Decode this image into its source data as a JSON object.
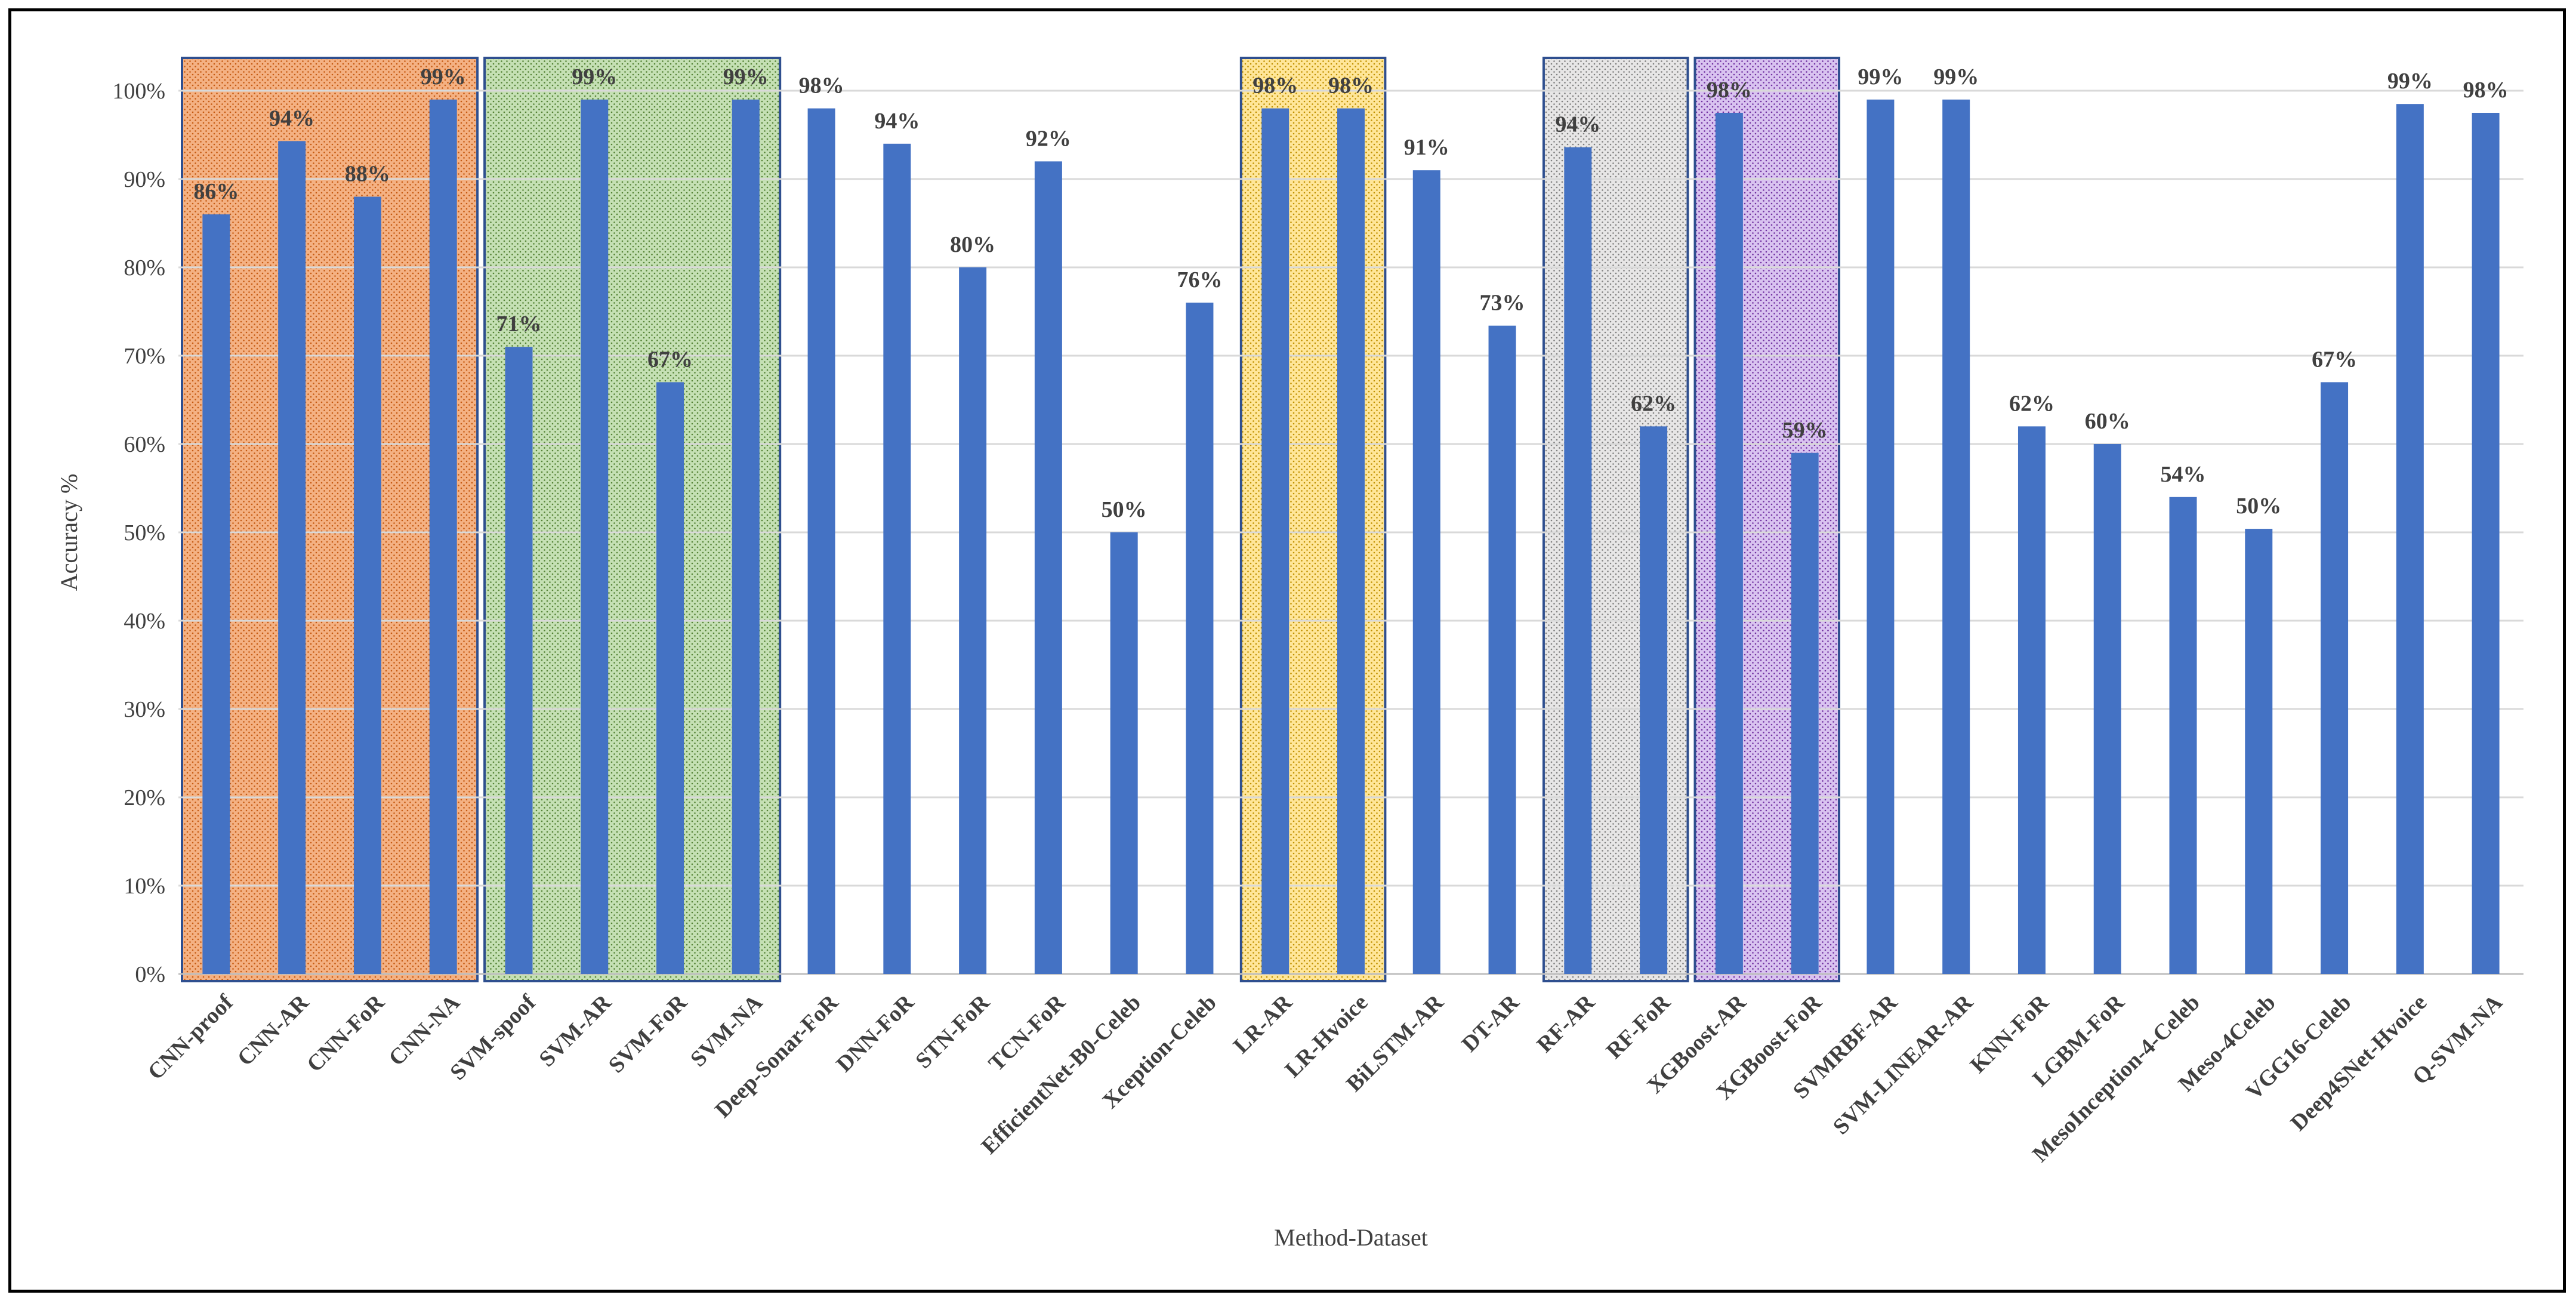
{
  "chart_data": {
    "type": "bar",
    "title": "",
    "xlabel": "Method-Dataset",
    "ylabel": "Accuracy %",
    "ylim": [
      0,
      100
    ],
    "yticks": [
      "0%",
      "10%",
      "20%",
      "30%",
      "40%",
      "50%",
      "60%",
      "70%",
      "80%",
      "90%",
      "100%"
    ],
    "grid": true,
    "bar_color": "#4472c4",
    "categories": [
      "CNN-proof",
      "CNN-AR",
      "CNN-FoR",
      "CNN-NA",
      "SVM-spoof",
      "SVM-AR",
      "SVM-FoR",
      "SVM-NA",
      "Deep-Sonar-FoR",
      "DNN-FoR",
      "STN-FoR",
      "TCN-FoR",
      "EfficientNet-B0-Celeb",
      "Xception-Celeb",
      "LR-AR",
      "LR-Hvoice",
      "BiLSTM-AR",
      "DT-AR",
      "RF-AR",
      "RF-FoR",
      "XGBoost-AR",
      "XGBoost-FoR",
      "SVMRBF-AR",
      "SVM-LINEAR-AR",
      "KNN-FoR",
      "LGBM-FoR",
      "MesoInception-4-Celeb",
      "Meso-4Celeb",
      "VGG16-Celeb",
      "Deep4SNet-Hvoice",
      "Q-SVM-NA"
    ],
    "values": [
      86,
      94.3,
      88,
      99,
      71,
      99,
      67,
      99,
      98,
      94,
      80,
      92,
      50,
      76,
      98,
      98,
      91,
      73.4,
      93.6,
      62,
      97.5,
      59,
      99,
      99,
      62,
      60,
      54,
      50.4,
      67,
      98.5,
      97.5
    ],
    "data_labels": [
      "86%",
      "94%",
      "88%",
      "99%",
      "71%",
      "99%",
      "67%",
      "99%",
      "98%",
      "94%",
      "80%",
      "92%",
      "50%",
      "76%",
      "98%",
      "98%",
      "91%",
      "73%",
      "94%",
      "62%",
      "98%",
      "59%",
      "99%",
      "99%",
      "62%",
      "60%",
      "54%",
      "50%",
      "67%",
      "99%",
      "98%"
    ],
    "highlight_groups": [
      {
        "name": "CNN",
        "first": 0,
        "last": 3,
        "fill": "#f4b183",
        "dot": "#c55a11"
      },
      {
        "name": "SVM",
        "first": 4,
        "last": 7,
        "fill": "#c5e0b4",
        "dot": "#548235"
      },
      {
        "name": "LR",
        "first": 14,
        "last": 15,
        "fill": "#ffe699",
        "dot": "#bf9000"
      },
      {
        "name": "RF",
        "first": 18,
        "last": 19,
        "fill": "#e7e6e6",
        "dot": "#7f7f7f"
      },
      {
        "name": "XGBoost",
        "first": 20,
        "last": 21,
        "fill": "#d9c3f0",
        "dot": "#7030a0"
      }
    ],
    "group_border_color": "#2f4f8f"
  }
}
